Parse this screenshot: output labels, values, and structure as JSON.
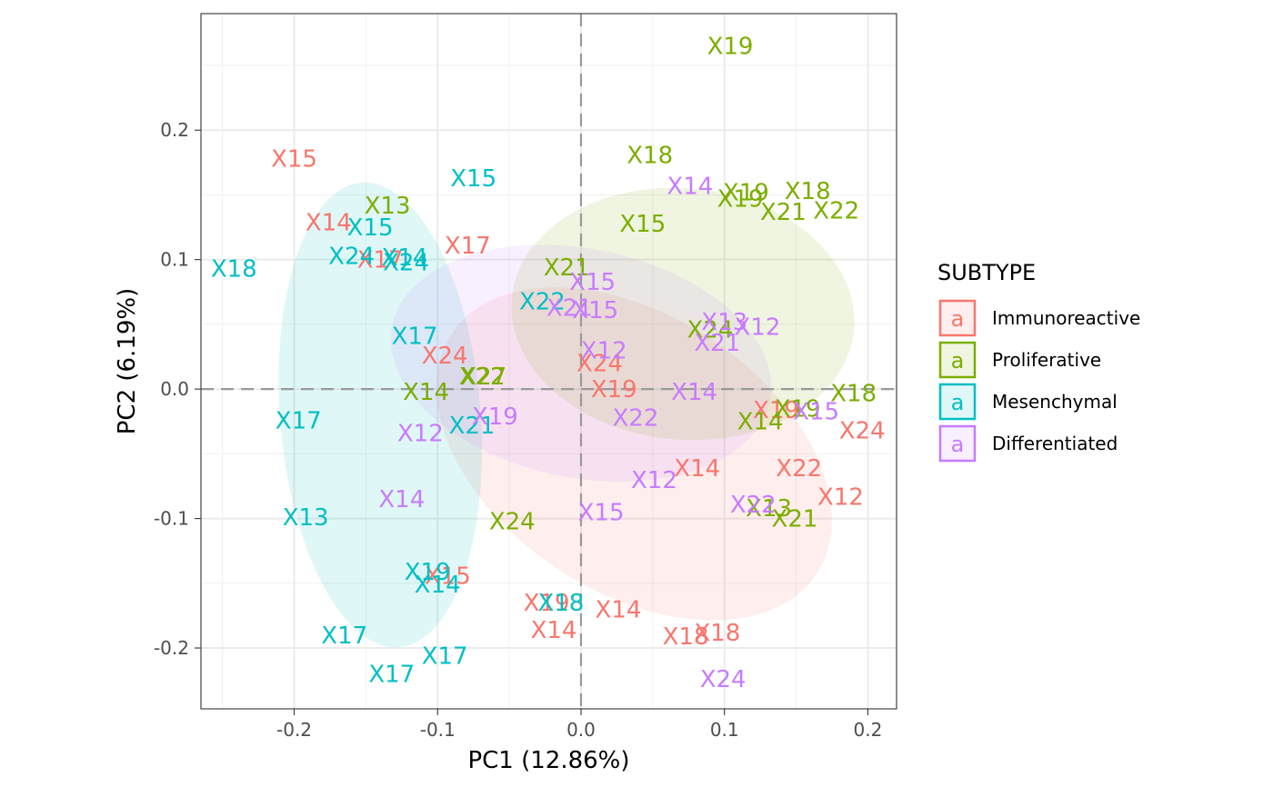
{
  "chart_data": {
    "type": "scatter",
    "title": "",
    "xlabel": "PC1 (12.86%)",
    "ylabel": "PC2 (6.19%)",
    "xlim": [
      -0.265,
      0.22
    ],
    "ylim": [
      -0.247,
      0.29
    ],
    "xticks": [
      -0.2,
      -0.1,
      0.0,
      0.1,
      0.2
    ],
    "xtick_labels": [
      "-0.2",
      "-0.1",
      "0.0",
      "0.1",
      "0.2"
    ],
    "yticks": [
      -0.2,
      -0.1,
      0.0,
      0.1,
      0.2
    ],
    "ytick_labels": [
      "-0.2",
      "-0.1",
      "0.0",
      "0.1",
      "0.2"
    ],
    "grid": true,
    "reference_lines": {
      "x": 0,
      "y": 0,
      "style": "dashed"
    },
    "legend": {
      "title": "SUBTYPE",
      "position": "right",
      "key_glyph": "a"
    },
    "series": [
      {
        "name": "Immunoreactive",
        "color": "#F8766D",
        "ellipse": {
          "cx": 0.037,
          "cy": -0.05,
          "rx": 0.158,
          "ry": 0.103,
          "angle_deg": -40
        },
        "points": [
          {
            "label": "X15",
            "x": -0.2,
            "y": 0.178
          },
          {
            "label": "X14",
            "x": -0.176,
            "y": 0.129
          },
          {
            "label": "X17",
            "x": -0.079,
            "y": 0.111
          },
          {
            "label": "X17",
            "x": -0.14,
            "y": 0.1
          },
          {
            "label": "X24",
            "x": -0.095,
            "y": 0.026
          },
          {
            "label": "X24",
            "x": 0.013,
            "y": 0.02
          },
          {
            "label": "X19",
            "x": 0.023,
            "y": 0.0
          },
          {
            "label": "X19",
            "x": 0.136,
            "y": -0.016
          },
          {
            "label": "X24",
            "x": 0.196,
            "y": -0.032
          },
          {
            "label": "X14",
            "x": 0.081,
            "y": -0.061
          },
          {
            "label": "X22",
            "x": 0.152,
            "y": -0.061
          },
          {
            "label": "X12",
            "x": 0.181,
            "y": -0.083
          },
          {
            "label": "X15",
            "x": -0.093,
            "y": -0.144
          },
          {
            "label": "X19",
            "x": -0.024,
            "y": -0.165
          },
          {
            "label": "X14",
            "x": -0.019,
            "y": -0.186
          },
          {
            "label": "X14",
            "x": 0.026,
            "y": -0.17
          },
          {
            "label": "X18",
            "x": 0.073,
            "y": -0.191
          },
          {
            "label": "X18",
            "x": 0.095,
            "y": -0.188
          }
        ]
      },
      {
        "name": "Proliferative",
        "color": "#7CAE00",
        "ellipse": {
          "cx": 0.071,
          "cy": 0.058,
          "rx": 0.12,
          "ry": 0.097,
          "angle_deg": -8
        },
        "points": [
          {
            "label": "X19",
            "x": 0.104,
            "y": 0.265
          },
          {
            "label": "X18",
            "x": 0.048,
            "y": 0.181
          },
          {
            "label": "X13",
            "x": -0.135,
            "y": 0.142
          },
          {
            "label": "X19",
            "x": 0.115,
            "y": 0.152
          },
          {
            "label": "X19",
            "x": 0.111,
            "y": 0.147
          },
          {
            "label": "X18",
            "x": 0.158,
            "y": 0.153
          },
          {
            "label": "X21",
            "x": 0.141,
            "y": 0.137
          },
          {
            "label": "X22",
            "x": 0.178,
            "y": 0.138
          },
          {
            "label": "X15",
            "x": 0.043,
            "y": 0.128
          },
          {
            "label": "X21",
            "x": -0.01,
            "y": 0.094
          },
          {
            "label": "X24",
            "x": 0.09,
            "y": 0.046
          },
          {
            "label": "X22",
            "x": -0.069,
            "y": 0.01
          },
          {
            "label": "X27",
            "x": -0.068,
            "y": 0.01
          },
          {
            "label": "X14",
            "x": -0.108,
            "y": -0.002
          },
          {
            "label": "X18",
            "x": 0.19,
            "y": -0.003
          },
          {
            "label": "X19",
            "x": 0.151,
            "y": -0.015
          },
          {
            "label": "X14",
            "x": 0.125,
            "y": -0.025
          },
          {
            "label": "X13",
            "x": 0.131,
            "y": -0.092
          },
          {
            "label": "X21",
            "x": 0.149,
            "y": -0.1
          },
          {
            "label": "X24",
            "x": -0.048,
            "y": -0.102
          }
        ]
      },
      {
        "name": "Mesenchymal",
        "color": "#00BFC4",
        "ellipse": {
          "cx": -0.14,
          "cy": -0.02,
          "rx": 0.07,
          "ry": 0.18,
          "angle_deg": 4
        },
        "points": [
          {
            "label": "X15",
            "x": -0.075,
            "y": 0.163
          },
          {
            "label": "X15",
            "x": -0.147,
            "y": 0.125
          },
          {
            "label": "X24",
            "x": -0.16,
            "y": 0.103
          },
          {
            "label": "X14",
            "x": -0.123,
            "y": 0.102
          },
          {
            "label": "X24",
            "x": -0.122,
            "y": 0.098
          },
          {
            "label": "X18",
            "x": -0.242,
            "y": 0.093
          },
          {
            "label": "X22",
            "x": -0.027,
            "y": 0.068
          },
          {
            "label": "X17",
            "x": -0.116,
            "y": 0.041
          },
          {
            "label": "X17",
            "x": -0.197,
            "y": -0.024
          },
          {
            "label": "X21",
            "x": -0.076,
            "y": -0.028
          },
          {
            "label": "X13",
            "x": -0.192,
            "y": -0.099
          },
          {
            "label": "X19",
            "x": -0.107,
            "y": -0.141
          },
          {
            "label": "X14",
            "x": -0.1,
            "y": -0.151
          },
          {
            "label": "X18",
            "x": -0.014,
            "y": -0.165
          },
          {
            "label": "X17",
            "x": -0.165,
            "y": -0.19
          },
          {
            "label": "X17",
            "x": -0.095,
            "y": -0.206
          },
          {
            "label": "X17",
            "x": -0.132,
            "y": -0.22
          }
        ]
      },
      {
        "name": "Differentiated",
        "color": "#C77CFF",
        "ellipse": {
          "cx": 0.0,
          "cy": 0.02,
          "rx": 0.135,
          "ry": 0.088,
          "angle_deg": -14
        },
        "points": [
          {
            "label": "X14",
            "x": 0.076,
            "y": 0.157
          },
          {
            "label": "X15",
            "x": 0.008,
            "y": 0.083
          },
          {
            "label": "X21",
            "x": -0.008,
            "y": 0.063
          },
          {
            "label": "X15",
            "x": 0.01,
            "y": 0.061
          },
          {
            "label": "X13",
            "x": 0.1,
            "y": 0.052
          },
          {
            "label": "X12",
            "x": 0.123,
            "y": 0.048
          },
          {
            "label": "X21",
            "x": 0.095,
            "y": 0.036
          },
          {
            "label": "X12",
            "x": 0.016,
            "y": 0.03
          },
          {
            "label": "X14",
            "x": 0.079,
            "y": -0.002
          },
          {
            "label": "X15",
            "x": 0.164,
            "y": -0.017
          },
          {
            "label": "X19",
            "x": -0.06,
            "y": -0.021
          },
          {
            "label": "X22",
            "x": 0.038,
            "y": -0.022
          },
          {
            "label": "X12",
            "x": -0.112,
            "y": -0.034
          },
          {
            "label": "X12",
            "x": 0.051,
            "y": -0.07
          },
          {
            "label": "X14",
            "x": -0.125,
            "y": -0.085
          },
          {
            "label": "X22",
            "x": 0.12,
            "y": -0.089
          },
          {
            "label": "X15",
            "x": 0.014,
            "y": -0.095
          },
          {
            "label": "X24",
            "x": 0.099,
            "y": -0.224
          }
        ]
      }
    ]
  }
}
